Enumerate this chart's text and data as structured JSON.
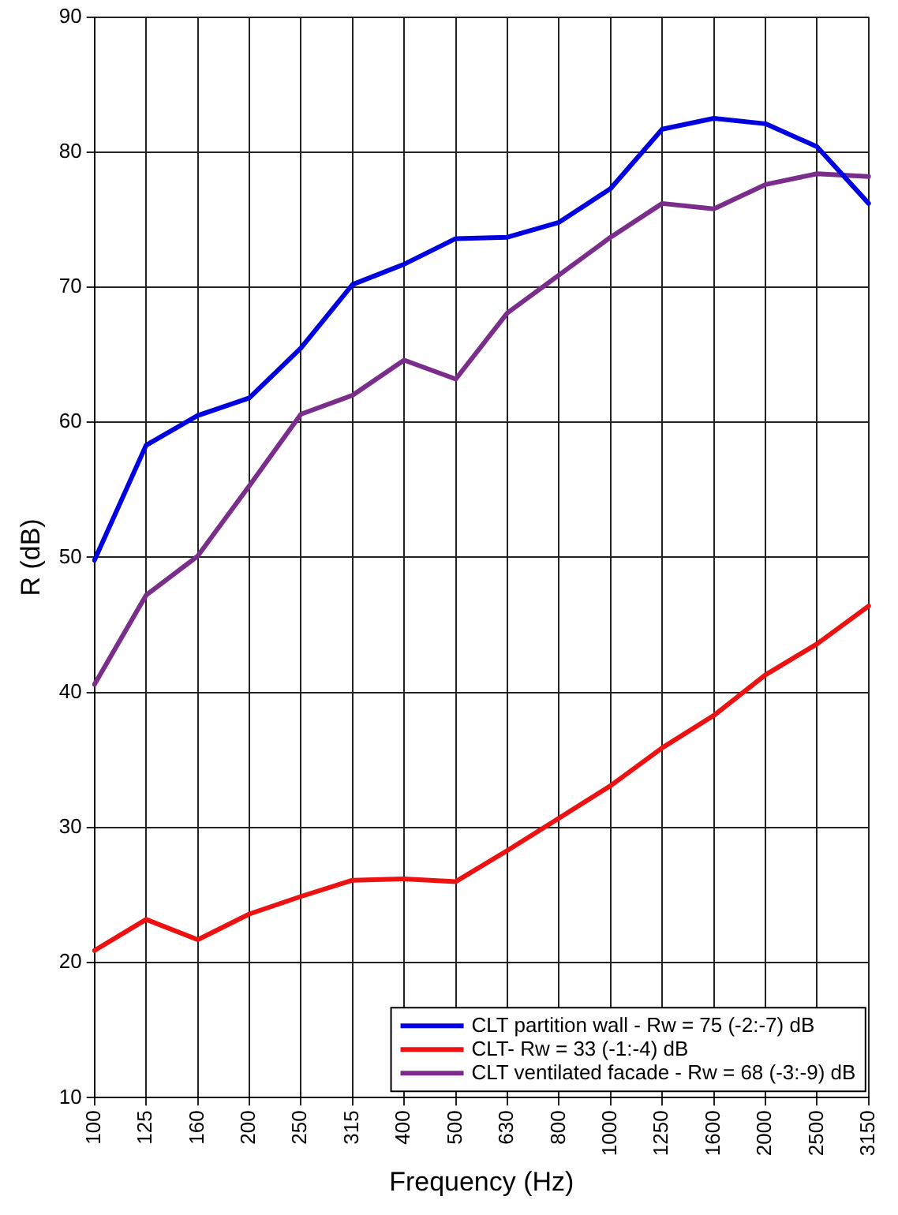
{
  "chart_data": {
    "type": "line",
    "xlabel": "Frequency (Hz)",
    "ylabel": "R (dB)",
    "categories": [
      "100",
      "125",
      "160",
      "200",
      "250",
      "315",
      "400",
      "500",
      "630",
      "800",
      "1000",
      "1250",
      "1600",
      "2000",
      "2500",
      "3150"
    ],
    "series": [
      {
        "name": "CLT partition wall - Rw = 75 (-2:-7) dB",
        "color": "#0000e0",
        "values": [
          49.8,
          58.3,
          60.5,
          61.8,
          65.5,
          70.2,
          71.7,
          73.6,
          73.7,
          74.8,
          77.3,
          81.7,
          82.5,
          82.1,
          80.4,
          76.2
        ]
      },
      {
        "name": "CLT- Rw = 33 (-1:-4) dB",
        "color": "#ee1111",
        "values": [
          20.9,
          23.2,
          21.7,
          23.6,
          24.9,
          26.1,
          26.2,
          26.0,
          28.3,
          30.7,
          33.1,
          35.9,
          38.3,
          41.3,
          43.6,
          46.4
        ]
      },
      {
        "name": "CLT ventilated facade - Rw = 68 (-3:-9) dB",
        "color": "#7b2d8b",
        "values": [
          40.6,
          47.2,
          50.1,
          55.3,
          60.6,
          62.0,
          64.6,
          63.2,
          68.1,
          70.9,
          73.7,
          76.2,
          75.8,
          77.6,
          78.4,
          78.2
        ]
      }
    ],
    "ylim": [
      10,
      90
    ],
    "yticks": [
      10,
      20,
      30,
      40,
      50,
      60,
      70,
      80,
      90
    ],
    "grid": true,
    "legend": "bottom right",
    "marker": "none",
    "line_style": "solid"
  }
}
